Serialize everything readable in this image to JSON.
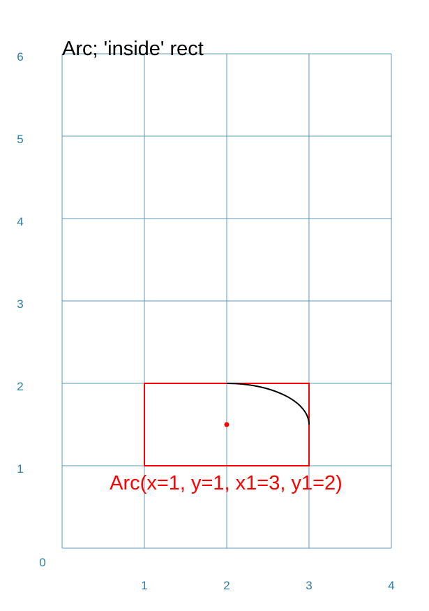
{
  "title": "Arc; 'inside' rect",
  "colors": {
    "grid": "#5b9bbd",
    "tick_label": "#2a7fa8",
    "rect": "#ff0000",
    "arc": "#000000",
    "title": "#000000",
    "annotation": "#ff0000"
  },
  "axes": {
    "x_range": [
      0,
      4
    ],
    "y_range": [
      0,
      6
    ],
    "x_ticks": [
      "0",
      "1",
      "2",
      "3",
      "4"
    ],
    "y_ticks": [
      "0",
      "1",
      "2",
      "3",
      "4",
      "5",
      "6"
    ]
  },
  "rect": {
    "x": 1,
    "y": 1,
    "x1": 3,
    "y1": 2
  },
  "center_point": {
    "x": 2,
    "y": 1.5
  },
  "arc": {
    "center_x": 2,
    "center_y": 1.5,
    "radius_x": 1,
    "radius_y": 0.5,
    "start_deg": 0,
    "end_deg": 90
  },
  "annotation": "Arc(x=1, y=1, x1=3, y1=2)"
}
